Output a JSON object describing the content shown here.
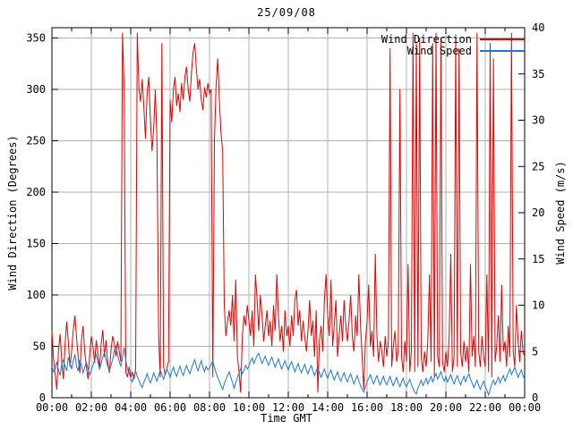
{
  "chart_data": {
    "type": "line",
    "title": "25/09/08",
    "xlabel": "Time GMT",
    "ylabel_left": "Wind Direction (Degrees)",
    "ylabel_right": "Wind Speed (m/s)",
    "background": "#ffffff",
    "grid": true,
    "grid_color": "#b0b0b0",
    "axis_color": "#000000",
    "legend_position": "top-right-inside",
    "x_range_minutes": [
      0,
      1440
    ],
    "x_tick_interval_minutes": 120,
    "x_minor_tick_minutes": 60,
    "x_tick_labels": [
      "00:00",
      "02:00",
      "04:00",
      "06:00",
      "08:00",
      "10:00",
      "12:00",
      "14:00",
      "16:00",
      "18:00",
      "20:00",
      "22:00",
      "00:00"
    ],
    "y_left": {
      "range": [
        0,
        360
      ],
      "ticks": [
        0,
        50,
        100,
        150,
        200,
        250,
        300,
        350
      ]
    },
    "y_right": {
      "range": [
        0,
        40
      ],
      "ticks": [
        0,
        5,
        10,
        15,
        20,
        25,
        30,
        35,
        40
      ]
    },
    "series": [
      {
        "name": "Wind Direction",
        "color": "#e60000",
        "axis": "left",
        "sample_interval_minutes": 5,
        "values": [
          65,
          38,
          22,
          8,
          46,
          62,
          35,
          18,
          52,
          74,
          55,
          30,
          45,
          66,
          80,
          58,
          40,
          24,
          56,
          70,
          44,
          30,
          18,
          42,
          60,
          50,
          34,
          56,
          44,
          28,
          52,
          66,
          40,
          56,
          34,
          24,
          46,
          60,
          52,
          40,
          55,
          45,
          35,
          355,
          300,
          25,
          20,
          30,
          20,
          25,
          18,
          28,
          355,
          300,
          288,
          310,
          282,
          252,
          296,
          312,
          270,
          240,
          262,
          300,
          250,
          60,
          20,
          345,
          30,
          22,
          28,
          35,
          290,
          268,
          300,
          312,
          284,
          296,
          278,
          306,
          290,
          312,
          322,
          300,
          288,
          316,
          336,
          345,
          320,
          300,
          310,
          290,
          280,
          302,
          292,
          306,
          296,
          300,
          20,
          250,
          302,
          330,
          290,
          258,
          240,
          90,
          60,
          75,
          85,
          70,
          100,
          55,
          115,
          40,
          25,
          5,
          60,
          80,
          70,
          90,
          75,
          60,
          85,
          50,
          120,
          95,
          65,
          100,
          80,
          55,
          70,
          85,
          60,
          75,
          50,
          90,
          65,
          120,
          80,
          55,
          70,
          45,
          85,
          60,
          70,
          50,
          80,
          60,
          95,
          105,
          70,
          85,
          55,
          75,
          60,
          45,
          65,
          95,
          60,
          75,
          40,
          85,
          5,
          55,
          70,
          45,
          95,
          120,
          80,
          60,
          115,
          50,
          70,
          95,
          40,
          60,
          80,
          55,
          95,
          70,
          55,
          75,
          100,
          60,
          45,
          80,
          60,
          120,
          70,
          40,
          8,
          55,
          75,
          110,
          50,
          65,
          40,
          140,
          60,
          35,
          55,
          45,
          30,
          60,
          40,
          55,
          340,
          30,
          50,
          65,
          35,
          45,
          300,
          40,
          25,
          55,
          35,
          130,
          25,
          45,
          355,
          25,
          345,
          30,
          350,
          40,
          25,
          45,
          30,
          55,
          120,
          35,
          345,
          20,
          355,
          40,
          30,
          350,
          35,
          25,
          45,
          30,
          60,
          140,
          25,
          40,
          350,
          30,
          340,
          45,
          30,
          55,
          35,
          50,
          25,
          130,
          40,
          60,
          30,
          355,
          45,
          30,
          60,
          40,
          30,
          120,
          25,
          345,
          20,
          330,
          35,
          50,
          80,
          35,
          110,
          45,
          55,
          30,
          70,
          40,
          355,
          45,
          30,
          90,
          55,
          35,
          65,
          45,
          40
        ]
      },
      {
        "name": "Wind Speed",
        "color": "#1e78d2",
        "axis": "right",
        "sample_interval_minutes": 5,
        "values": [
          3.4,
          2.8,
          3.1,
          3.9,
          3.0,
          2.4,
          3.7,
          4.1,
          3.4,
          2.9,
          4.4,
          3.7,
          3.1,
          4.0,
          4.7,
          3.4,
          2.9,
          4.1,
          3.5,
          2.7,
          3.3,
          3.9,
          3.1,
          2.5,
          3.0,
          3.5,
          4.1,
          4.7,
          3.9,
          3.1,
          3.7,
          4.4,
          4.9,
          4.1,
          3.4,
          2.9,
          3.5,
          4.1,
          5.1,
          5.6,
          4.7,
          3.9,
          3.4,
          4.4,
          5.4,
          4.0,
          3.1,
          2.7,
          2.1,
          1.7,
          2.4,
          2.9,
          2.3,
          1.9,
          1.4,
          1.1,
          1.7,
          2.1,
          2.6,
          2.0,
          1.6,
          2.1,
          2.7,
          2.2,
          1.8,
          2.4,
          3.0,
          2.5,
          2.0,
          2.6,
          3.1,
          2.7,
          2.2,
          2.8,
          3.3,
          2.7,
          2.3,
          2.9,
          3.4,
          2.8,
          2.4,
          3.0,
          3.5,
          3.0,
          2.6,
          3.1,
          3.7,
          4.1,
          3.4,
          2.9,
          3.5,
          4.0,
          3.3,
          2.8,
          3.4,
          3.0,
          3.2,
          3.6,
          4.0,
          3.3,
          2.7,
          2.2,
          1.8,
          1.3,
          0.9,
          1.5,
          2.0,
          2.4,
          2.8,
          2.2,
          1.6,
          1.0,
          1.6,
          2.2,
          2.7,
          3.1,
          2.6,
          3.0,
          3.5,
          3.1,
          3.4,
          3.9,
          4.3,
          3.7,
          4.1,
          4.6,
          4.8,
          4.2,
          3.7,
          4.1,
          4.5,
          3.9,
          3.5,
          4.0,
          4.4,
          3.8,
          3.3,
          3.8,
          4.2,
          3.6,
          3.1,
          3.6,
          4.0,
          3.4,
          3.0,
          3.5,
          3.9,
          3.3,
          2.8,
          3.3,
          3.7,
          3.1,
          2.7,
          3.2,
          3.6,
          3.0,
          2.6,
          3.1,
          3.5,
          2.9,
          2.4,
          2.9,
          3.3,
          2.7,
          2.2,
          2.7,
          3.1,
          2.5,
          2.1,
          2.6,
          3.0,
          2.4,
          1.9,
          2.4,
          2.8,
          2.2,
          1.8,
          2.3,
          2.7,
          2.1,
          1.7,
          2.2,
          2.6,
          2.0,
          1.5,
          2.0,
          2.4,
          1.8,
          1.3,
          0.9,
          0.6,
          1.2,
          1.7,
          2.1,
          2.5,
          1.9,
          1.5,
          2.0,
          2.4,
          1.8,
          1.4,
          1.9,
          2.3,
          1.7,
          1.4,
          1.9,
          2.3,
          1.7,
          1.3,
          1.8,
          2.2,
          1.6,
          1.2,
          1.7,
          2.1,
          1.5,
          1.2,
          1.6,
          2.0,
          1.4,
          1.0,
          0.6,
          0.4,
          1.0,
          1.5,
          1.9,
          1.3,
          1.7,
          2.1,
          1.5,
          1.9,
          2.3,
          1.7,
          2.2,
          2.6,
          2.0,
          2.4,
          2.8,
          2.2,
          1.8,
          2.3,
          1.7,
          2.1,
          2.5,
          1.9,
          1.5,
          2.0,
          2.4,
          1.8,
          1.4,
          1.9,
          2.3,
          1.7,
          2.2,
          2.6,
          2.0,
          1.6,
          1.1,
          1.5,
          1.9,
          1.3,
          0.9,
          1.4,
          1.8,
          1.2,
          0.8,
          0.3,
          0.9,
          1.5,
          1.9,
          1.4,
          1.8,
          2.2,
          1.6,
          2.0,
          2.4,
          1.8,
          2.2,
          2.7,
          3.1,
          2.5,
          2.9,
          3.3,
          2.7,
          2.2,
          2.6,
          3.0,
          2.4,
          2.0
        ]
      }
    ]
  }
}
